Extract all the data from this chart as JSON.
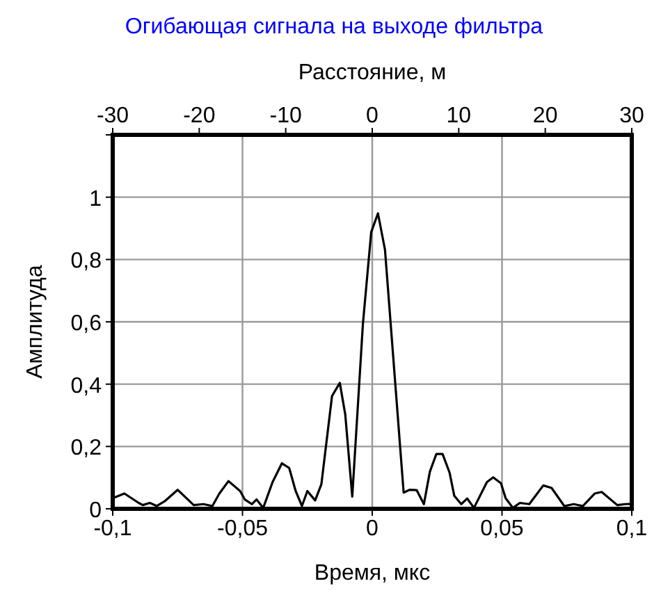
{
  "chart_data": {
    "type": "line",
    "title": "Огибающая сигнала на выходе фильтра",
    "xlabel": "Время, мкс",
    "ylabel": "Амплитуда",
    "x2label": "Расстояние, м",
    "x": [
      -0.1,
      -0.0955,
      -0.09,
      -0.0884,
      -0.0857,
      -0.083,
      -0.08,
      -0.075,
      -0.0688,
      -0.065,
      -0.0616,
      -0.0589,
      -0.0554,
      -0.0509,
      -0.0491,
      -0.0464,
      -0.0446,
      -0.042,
      -0.0384,
      -0.0348,
      -0.032,
      -0.0295,
      -0.0271,
      -0.025,
      -0.022,
      -0.0196,
      -0.0155,
      -0.0125,
      -0.0104,
      -0.0077,
      -0.0036,
      -0.0004,
      0.0022,
      0.0049,
      0.0121,
      0.0144,
      0.0171,
      0.0199,
      0.0222,
      0.0247,
      0.0271,
      0.0298,
      0.0316,
      0.0343,
      0.0366,
      0.0392,
      0.0442,
      0.0466,
      0.0496,
      0.0514,
      0.0542,
      0.0569,
      0.0605,
      0.0659,
      0.0691,
      0.074,
      0.0776,
      0.0812,
      0.0857,
      0.0884,
      0.0944,
      0.0975,
      0.1
    ],
    "series": [
      {
        "color": "#000000",
        "values": [
          0.034,
          0.049,
          0.019,
          0.012,
          0.019,
          0.009,
          0.024,
          0.061,
          0.012,
          0.015,
          0.009,
          0.049,
          0.089,
          0.057,
          0.03,
          0.015,
          0.03,
          0.003,
          0.086,
          0.146,
          0.131,
          0.057,
          0.009,
          0.057,
          0.027,
          0.079,
          0.362,
          0.404,
          0.303,
          0.039,
          0.593,
          0.888,
          0.948,
          0.832,
          0.052,
          0.061,
          0.06,
          0.015,
          0.119,
          0.176,
          0.176,
          0.116,
          0.042,
          0.015,
          0.033,
          0.003,
          0.086,
          0.101,
          0.082,
          0.034,
          0.003,
          0.019,
          0.015,
          0.075,
          0.067,
          0.009,
          0.015,
          0.009,
          0.049,
          0.054,
          0.012,
          0.015,
          0.016
        ]
      }
    ],
    "xlim": [
      -0.1,
      0.1
    ],
    "xticks": [
      {
        "value": -0.1,
        "label": "-0,1"
      },
      {
        "value": -0.05,
        "label": "-0,05"
      },
      0,
      {
        "value": 0.05,
        "label": "0,05"
      },
      {
        "value": 0.1,
        "label": "0,1"
      }
    ],
    "x2lim": [
      -30,
      30
    ],
    "x2ticks": [
      -30,
      -20,
      -10,
      0,
      10,
      20,
      30
    ],
    "ylim": [
      0,
      1.2
    ],
    "yticks": [
      0,
      {
        "value": 0.2,
        "label": "0,2"
      },
      {
        "value": 0.4,
        "label": "0,4"
      },
      {
        "value": 0.6,
        "label": "0,6"
      },
      {
        "value": 0.8,
        "label": "0,8"
      },
      1,
      {
        "value": 1.2,
        "label": null
      }
    ],
    "grid": true,
    "line_style": "solid",
    "marker": "none"
  }
}
